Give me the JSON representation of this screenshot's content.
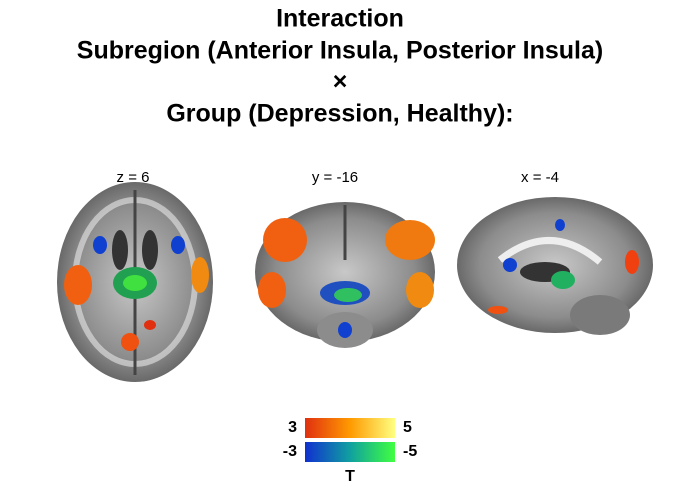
{
  "title": [
    "Interaction",
    "Subregion (Anterior Insula, Posterior Insula)",
    "×",
    "Group (Depression, Healthy):"
  ],
  "slices": [
    {
      "label": "z = 6"
    },
    {
      "label": "y = -16"
    },
    {
      "label": "x = -4"
    }
  ],
  "colorbar": {
    "positive": {
      "min": 3,
      "max": 5
    },
    "negative": {
      "min": -3,
      "max": -5
    },
    "label": "T"
  }
}
